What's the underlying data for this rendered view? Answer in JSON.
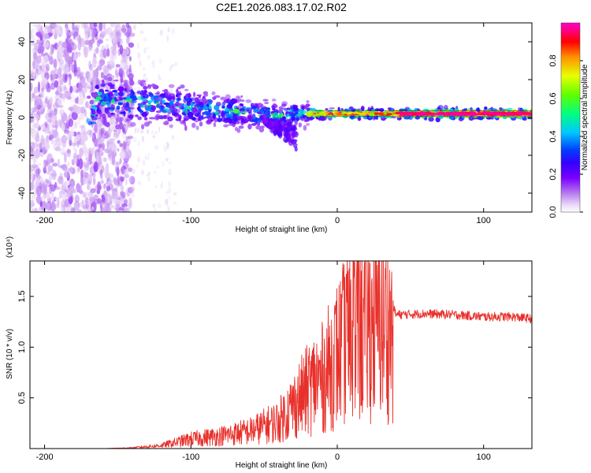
{
  "title": "C2E1.2026.083.17.02.R02",
  "chart_data": [
    {
      "type": "heatmap",
      "title": "C2E1.2026.083.17.02.R02",
      "xlabel": "Height of straight line (km)",
      "ylabel": "Frequency (Hz)",
      "xlim": [
        -210,
        133
      ],
      "ylim": [
        -50,
        50
      ],
      "xticks": [
        -200,
        -100,
        0,
        100
      ],
      "yticks": [
        -40,
        -20,
        0,
        20,
        40
      ],
      "colorbar": {
        "label": "Normalized spectral amplitude",
        "range": [
          0,
          1
        ],
        "ticks": [
          0.0,
          0.2,
          0.4,
          0.6,
          0.8
        ],
        "colormap": [
          "#ffffff",
          "#e9d6f7",
          "#b77aef",
          "#7a00ff",
          "#3300ff",
          "#0040ff",
          "#00c8ff",
          "#00ff80",
          "#60ff00",
          "#e8ff00",
          "#ff9000",
          "#ff0000",
          "#ff0080",
          "#ff00c8"
        ]
      },
      "ridge": [
        {
          "x": -165,
          "y": 10
        },
        {
          "x": -140,
          "y": 8
        },
        {
          "x": -120,
          "y": 7
        },
        {
          "x": -100,
          "y": 5
        },
        {
          "x": -80,
          "y": 4
        },
        {
          "x": -60,
          "y": 2
        },
        {
          "x": -40,
          "y": 1
        },
        {
          "x": -20,
          "y": 2
        },
        {
          "x": 0,
          "y": 2
        },
        {
          "x": 40,
          "y": 2
        },
        {
          "x": 80,
          "y": 2
        },
        {
          "x": 133,
          "y": 2
        }
      ]
    },
    {
      "type": "line",
      "xlabel": "Height of straight line (km)",
      "ylabel": "SNR (10 * v/v)",
      "y_multiplier": "(x10⁴)",
      "xlim": [
        -210,
        133
      ],
      "ylim": [
        0,
        1.85
      ],
      "xticks": [
        -200,
        -100,
        0,
        100
      ],
      "yticks": [
        0.5,
        1.0,
        1.5
      ],
      "ytick_labels": [
        "0.5",
        "1.0",
        "1.5"
      ],
      "series": [
        {
          "name": "SNR",
          "color": "#e8302a",
          "x": [
            -210,
            -160,
            -140,
            -120,
            -100,
            -80,
            -60,
            -40,
            -30,
            -20,
            -15,
            -10,
            -5,
            0,
            5,
            10,
            15,
            20,
            25,
            30,
            35,
            40,
            60,
            80,
            100,
            120,
            133
          ],
          "y": [
            0.0,
            0.0,
            0.01,
            0.04,
            0.12,
            0.16,
            0.22,
            0.35,
            0.55,
            0.75,
            0.85,
            0.9,
            1.05,
            1.2,
            1.35,
            1.45,
            1.5,
            1.55,
            1.6,
            1.6,
            1.58,
            1.32,
            1.33,
            1.32,
            1.3,
            1.3,
            1.28
          ]
        }
      ]
    }
  ]
}
